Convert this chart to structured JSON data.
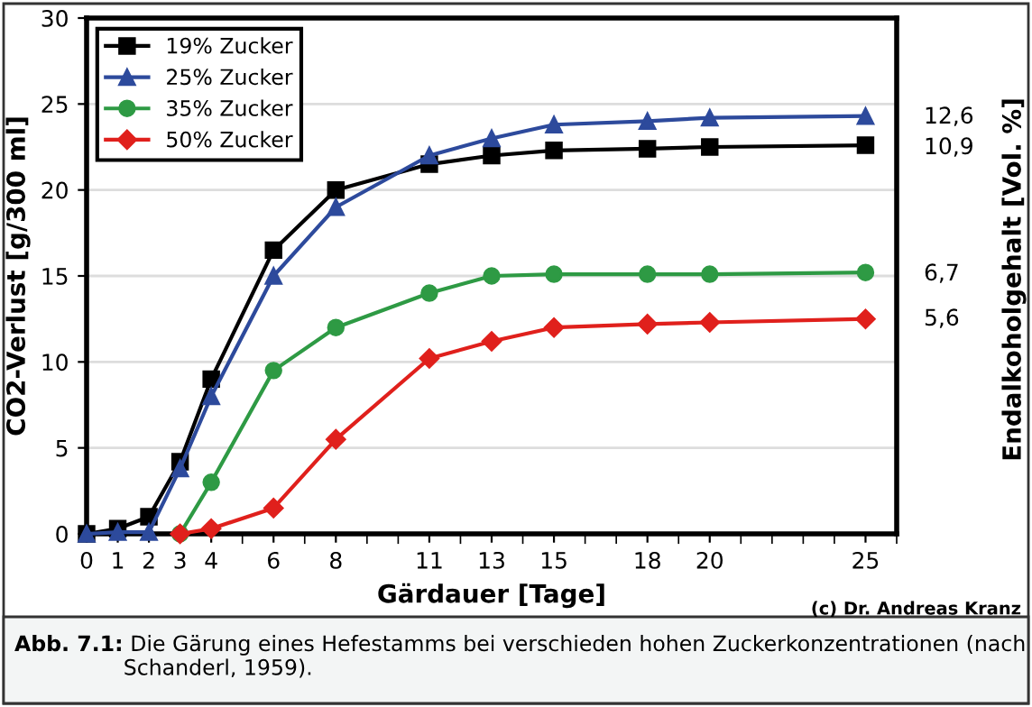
{
  "chart_data": {
    "type": "line",
    "xlabel": "Gärdauer [Tage]",
    "ylabel": "CO2-Verlust [g/300 ml]",
    "y2label": "Endalkoholgehalt [Vol. %]",
    "xlim": [
      0,
      26
    ],
    "xticks": [
      0,
      1,
      2,
      3,
      4,
      6,
      8,
      11,
      13,
      15,
      18,
      20,
      25
    ],
    "ylim": [
      0,
      30
    ],
    "yticks": [
      0,
      5,
      10,
      15,
      20,
      25,
      30
    ],
    "grid": "y",
    "legend": "top left",
    "series": [
      {
        "name": "19% Zucker",
        "color": "#000000",
        "marker": "square",
        "x": [
          0,
          1,
          2,
          3,
          4,
          6,
          8,
          11,
          13,
          15,
          18,
          20,
          25
        ],
        "values": [
          0,
          0.3,
          1,
          4.2,
          9,
          16.5,
          20,
          21.5,
          22,
          22.3,
          22.4,
          22.5,
          22.6
        ]
      },
      {
        "name": "25% Zucker",
        "color": "#2d4a9c",
        "marker": "triangle",
        "x": [
          0,
          1,
          2,
          3,
          4,
          6,
          8,
          11,
          13,
          15,
          18,
          20,
          25
        ],
        "values": [
          0,
          0.1,
          0.1,
          3.8,
          8,
          15,
          19,
          22,
          23,
          23.8,
          24,
          24.2,
          24.3
        ]
      },
      {
        "name": "35% Zucker",
        "color": "#2e9a44",
        "marker": "circle",
        "x": [
          3,
          4,
          6,
          8,
          11,
          13,
          15,
          18,
          20,
          25
        ],
        "values": [
          0,
          3,
          9.5,
          12,
          14,
          15,
          15.1,
          15.1,
          15.1,
          15.2
        ]
      },
      {
        "name": "50% Zucker",
        "color": "#e0201c",
        "marker": "diamond",
        "x": [
          3,
          4,
          6,
          8,
          11,
          13,
          15,
          18,
          20,
          25
        ],
        "values": [
          0,
          0.3,
          1.5,
          5.5,
          10.2,
          11.2,
          12,
          12.2,
          12.3,
          12.5
        ]
      }
    ],
    "annotations": [
      "12,6",
      "10,9",
      "6,7",
      "5,6",
      "(c) Dr. Andreas Kranz",
      "Abb. 7.1: Die Gärung eines Hefestamms bei verschieden hohen Zuckerkonzentrationen (nach Schanderl, 1959)."
    ]
  }
}
